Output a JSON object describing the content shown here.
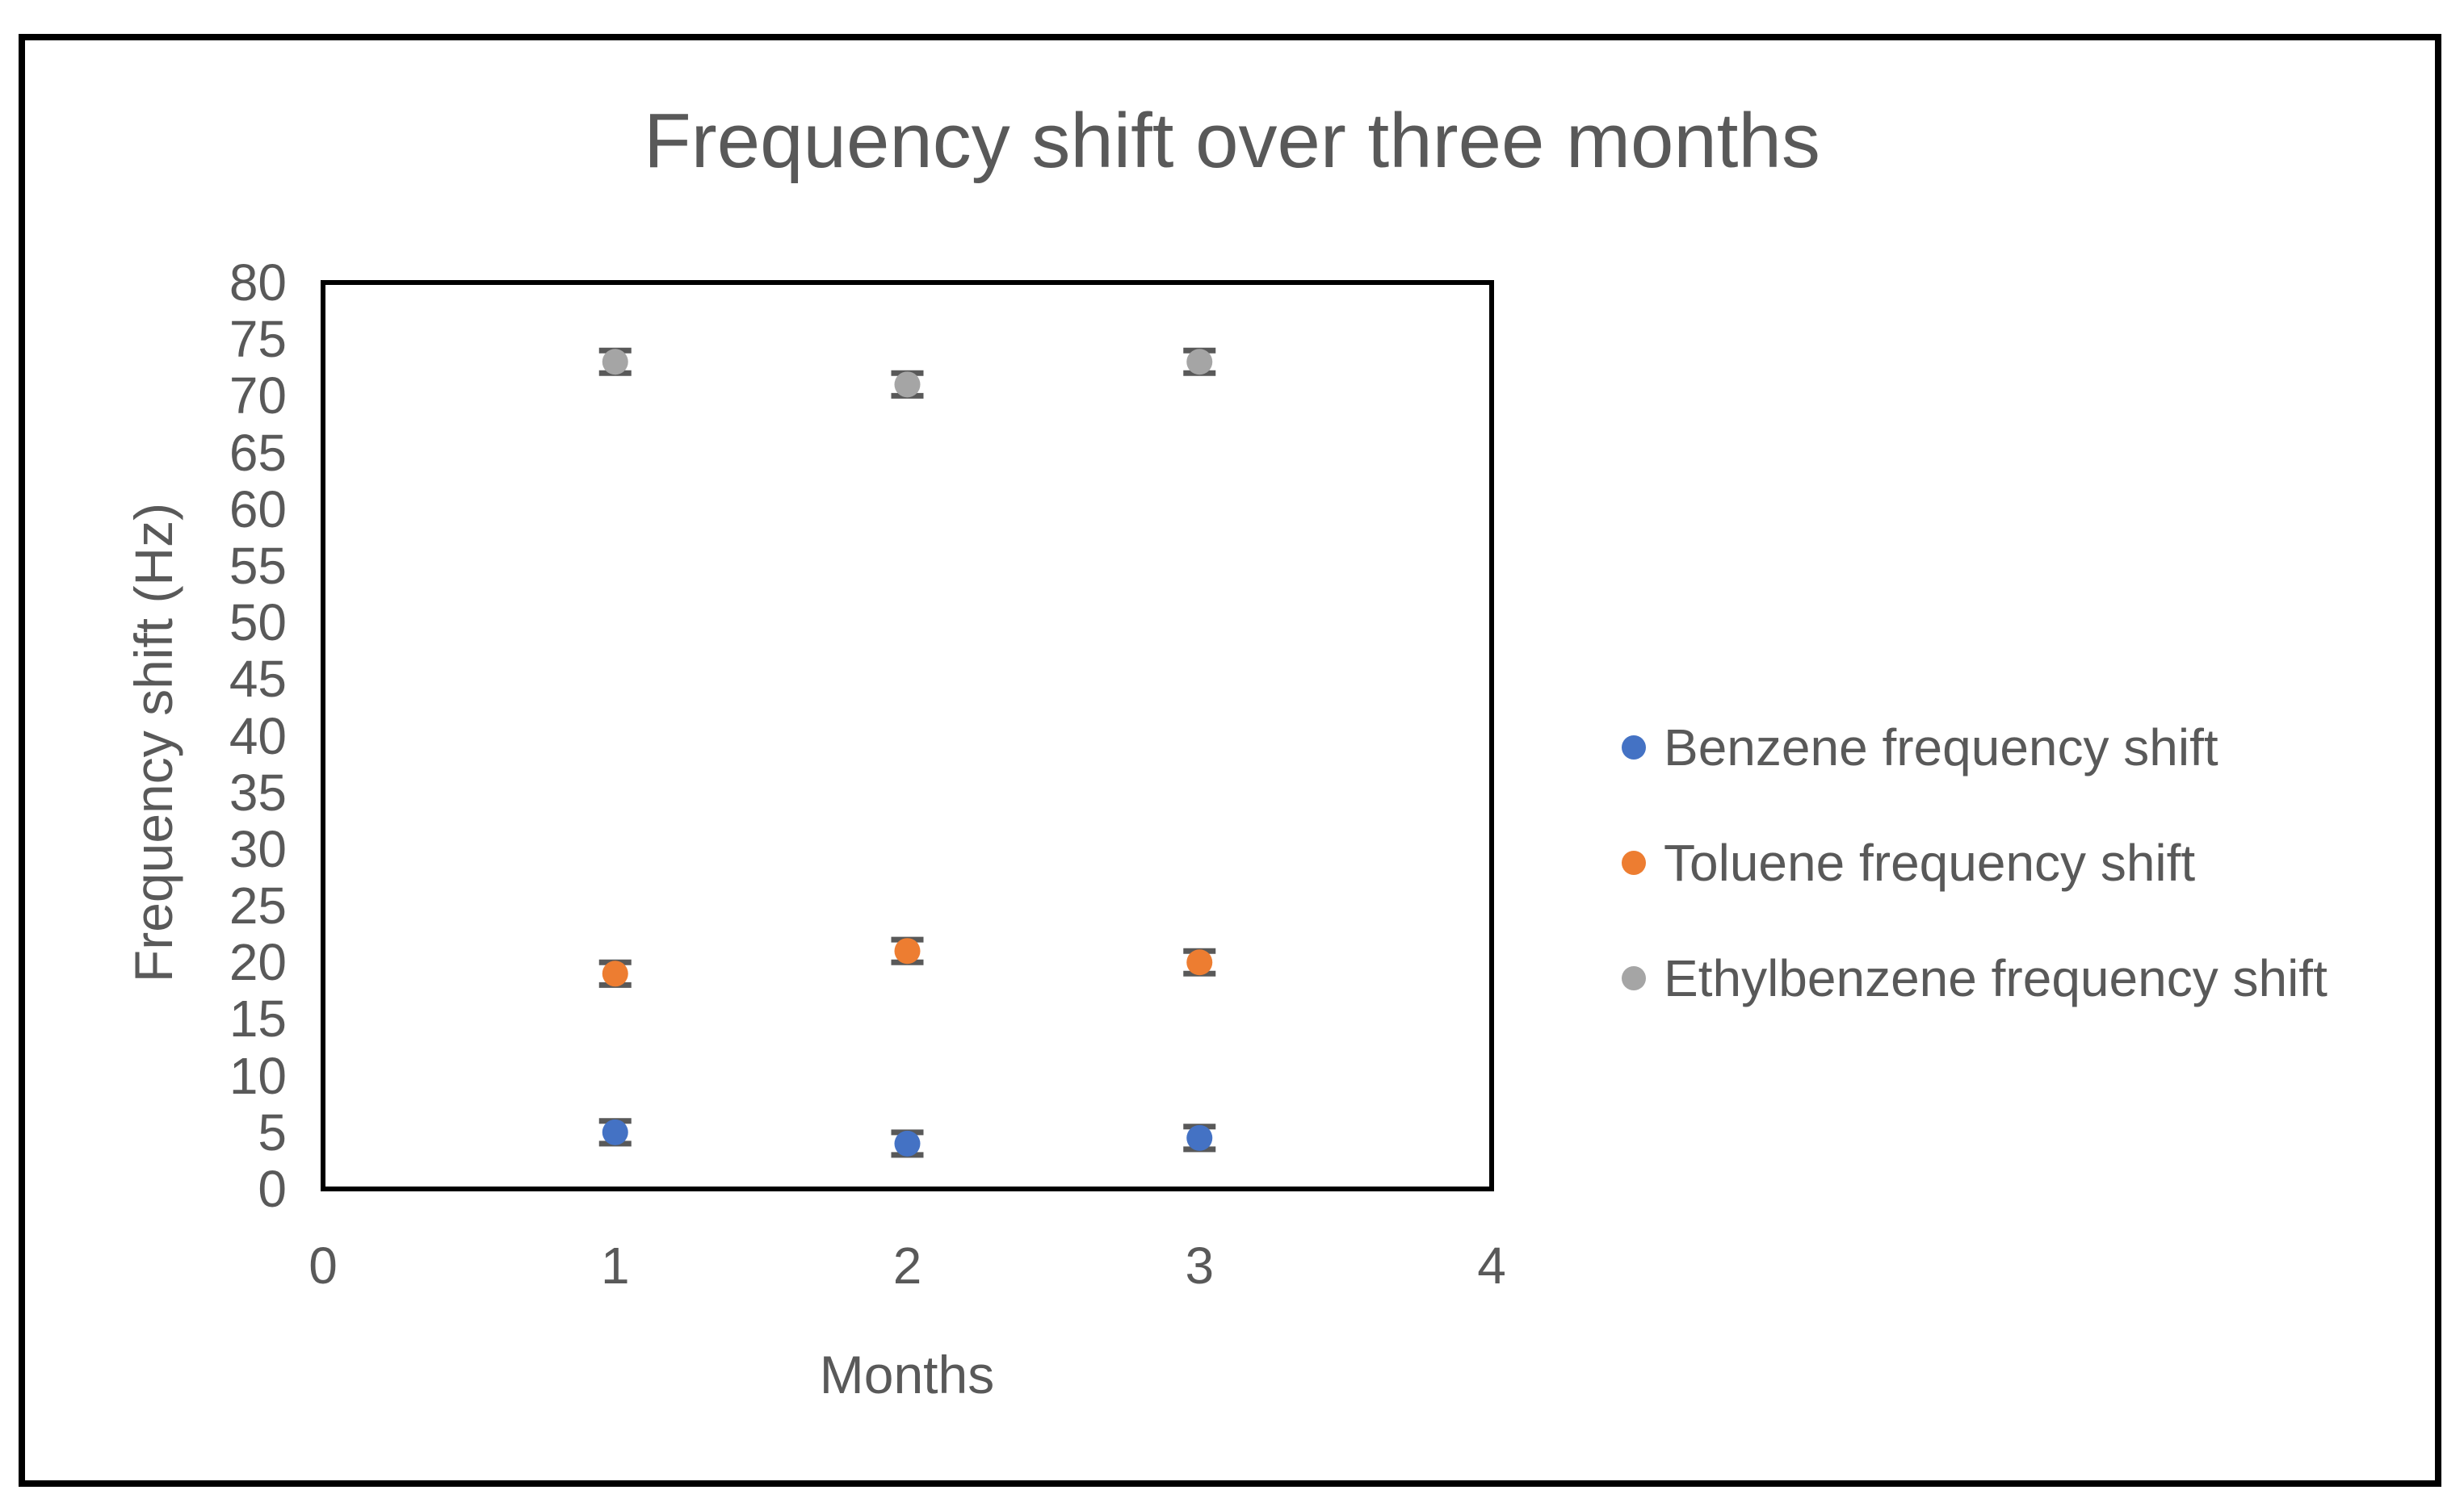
{
  "window": {
    "background_color": "#ffffff",
    "border_color": "#000000"
  },
  "chart_data": {
    "type": "scatter",
    "title": "Frequency shift over three months",
    "xlabel": "Months",
    "ylabel": "Frequency shift (Hz)",
    "xlim": [
      0,
      4
    ],
    "ylim": [
      0,
      80
    ],
    "xticks": [
      0,
      1,
      2,
      3,
      4
    ],
    "yticks": [
      0,
      5,
      10,
      15,
      20,
      25,
      30,
      35,
      40,
      45,
      50,
      55,
      60,
      65,
      70,
      75,
      80
    ],
    "grid": false,
    "legend_position": "right",
    "x": [
      1,
      2,
      3
    ],
    "series": [
      {
        "name": "Benzene frequency shift",
        "color": "#4472C4",
        "values": [
          5,
          4,
          4.5
        ],
        "error": 1
      },
      {
        "name": "Toluene frequency shift",
        "color": "#ED7D31",
        "values": [
          19,
          21,
          20
        ],
        "error": 1
      },
      {
        "name": "Ethylbenzene frequency shift",
        "color": "#A5A5A5",
        "values": [
          73,
          71,
          73
        ],
        "error": 1
      }
    ],
    "error_bar_color": "#595959",
    "text_color": "#595959",
    "frame_color": "#000000"
  }
}
